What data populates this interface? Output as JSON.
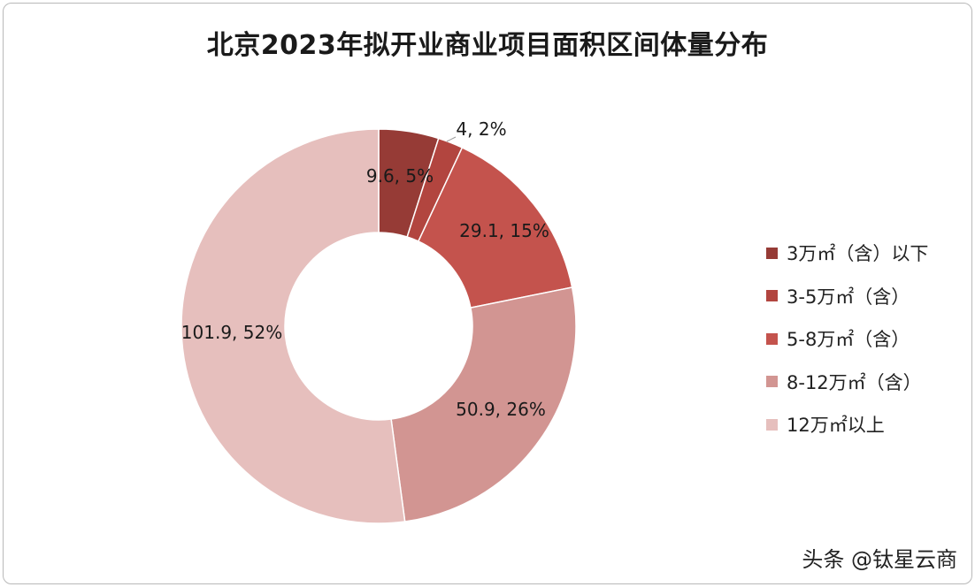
{
  "watermark": "头条 @钛星云商",
  "chart_data": {
    "type": "pie",
    "title": "北京2023年拟开业商业项目面积区间体量分布",
    "legend_position": "right",
    "series": [
      {
        "name": "3万㎡（含）以下",
        "value": 9.6,
        "percent": 5,
        "label": "9.6, 5%",
        "color": "#963b36"
      },
      {
        "name": "3-5万㎡（含）",
        "value": 4,
        "percent": 2,
        "label": "4, 2%",
        "color": "#b2453f"
      },
      {
        "name": "5-8万㎡（含）",
        "value": 29.1,
        "percent": 15,
        "label": "29.1, 15%",
        "color": "#c4534d"
      },
      {
        "name": "8-12万㎡（含）",
        "value": 50.9,
        "percent": 26,
        "label": "50.9, 26%",
        "color": "#d29592"
      },
      {
        "name": "12万㎡以上",
        "value": 101.9,
        "percent": 52,
        "label": "101.9, 52%",
        "color": "#e6bfbd"
      }
    ]
  }
}
